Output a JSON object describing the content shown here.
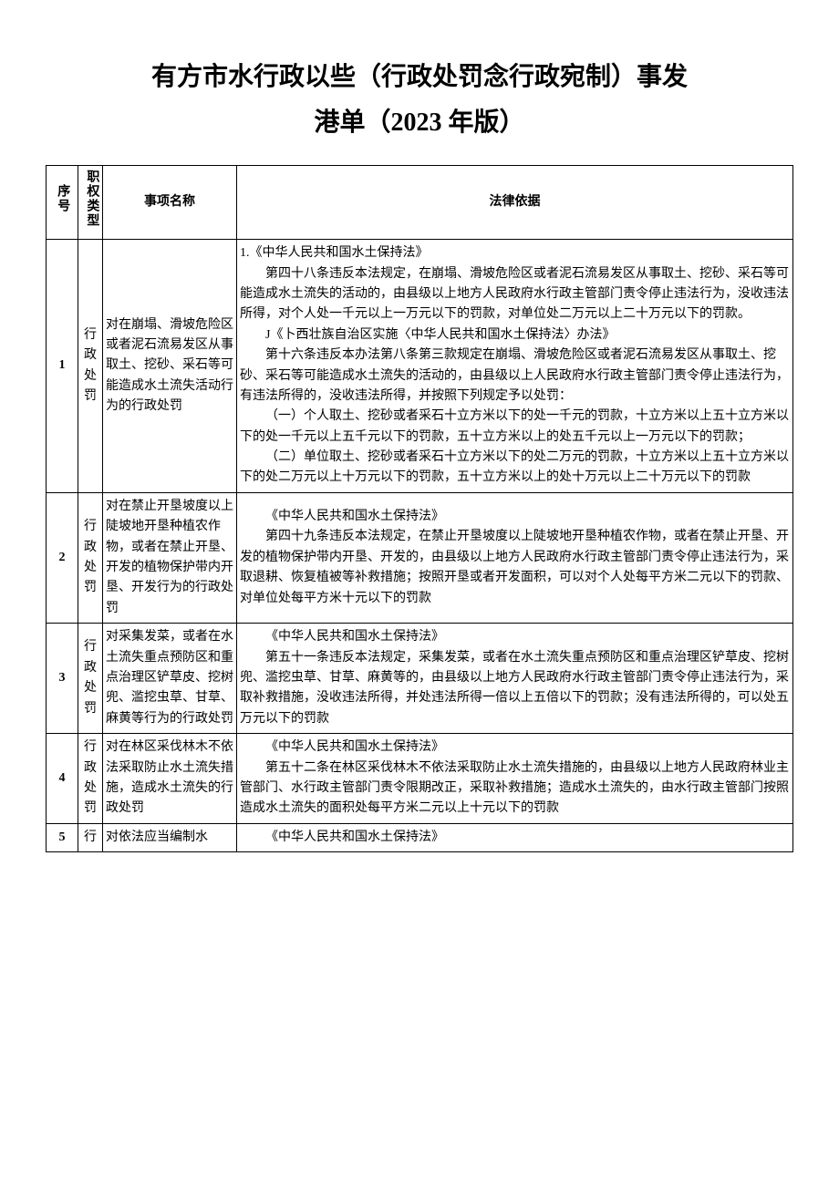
{
  "title_line1": "有方市水行政以些（行政处罚念行政宛制）事发",
  "title_line2": "港单（2023 年版）",
  "headers": {
    "num": "序号",
    "type": "职权类型",
    "name": "事项名称",
    "basis": "法律依据"
  },
  "rows": [
    {
      "num": "1",
      "type": "行政处罚",
      "name": "对在崩塌、滑坡危险区或者泥石流易发区从事取土、挖砂、采石等可能造成水土流失活动行为的行政处罚",
      "basis_lines": [
        {
          "cls": "first-line",
          "text": "1.《中华人民共和国水土保持法》"
        },
        {
          "cls": "indent",
          "text": "第四十八条违反本法规定，在崩塌、滑坡危险区或者泥石流易发区从事取土、挖砂、采石等可能造成水土流失的活动的，由县级以上地方人民政府水行政主管部门责令停止违法行为，没收违法所得，对个人处一千元以上一万元以下的罚款，对单位处二万元以上二十万元以下的罚款。"
        },
        {
          "cls": "indent",
          "text": "J《卜西壮族自治区实施〈中华人民共和国水土保持法〉办法》"
        },
        {
          "cls": "indent",
          "text": "第十六条违反本办法第八条第三款规定在崩塌、滑坡危险区或者泥石流易发区从事取土、挖砂、采石等可能造成水土流失的活动的，由县级以上人民政府水行政主管部门责令停止违法行为，有违法所得的，没收违法所得，并按照下列规定予以处罚："
        },
        {
          "cls": "indent",
          "text": "（一）个人取土、挖砂或者采石十立方米以下的处一千元的罚款，十立方米以上五十立方米以下的处一千元以上五千元以下的罚款，五十立方米以上的处五千元以上一万元以下的罚款；"
        },
        {
          "cls": "indent",
          "text": "（二）单位取土、挖砂或者采石十立方米以下的处二万元的罚款，十立方米以上五十立方米以下的处二万元以上十万元以下的罚款，五十立方米以上的处十万元以上二十万元以下的罚款"
        }
      ]
    },
    {
      "num": "2",
      "type": "行政处罚",
      "name": "对在禁止开垦坡度以上陡坡地开垦种植农作物，或者在禁止开垦、开发的植物保护带内开垦、开发行为的行政处罚",
      "basis_lines": [
        {
          "cls": "indent",
          "text": "《中华人民共和国水土保持法》"
        },
        {
          "cls": "indent",
          "text": "第四十九条违反本法规定，在禁止开垦坡度以上陡坡地开垦种植农作物，或者在禁止开垦、开发的植物保护带内开垦、开发的，由县级以上地方人民政府水行政主管部门责令停止违法行为，采取退耕、恢复植被等补救措施；按照开垦或者开发面积，可以对个人处每平方米二元以下的罚款、对单位处每平方米十元以下的罚款"
        }
      ]
    },
    {
      "num": "3",
      "type": "行政处罚",
      "name": "对采集发菜，或者在水土流失重点预防区和重点治理区铲草皮、挖树兜、滥挖虫草、甘草、麻黄等行为的行政处罚",
      "basis_lines": [
        {
          "cls": "indent",
          "text": "《中华人民共和国水土保持法》"
        },
        {
          "cls": "indent",
          "text": "第五十一条违反本法规定，采集发菜，或者在水土流失重点预防区和重点治理区铲草皮、挖树兜、滥挖虫草、甘草、麻黄等的，由县级以上地方人民政府水行政主管部门责令停止违法行为，采取补救措施，没收违法所得，并处违法所得一倍以上五倍以下的罚款；没有违法所得的，可以处五万元以下的罚款"
        }
      ]
    },
    {
      "num": "4",
      "type": "行政处罚",
      "name": "对在林区采伐林木不依法采取防止水土流失措施，造成水土流失的行政处罚",
      "basis_lines": [
        {
          "cls": "indent",
          "text": "《中华人民共和国水土保持法》"
        },
        {
          "cls": "indent",
          "text": "第五十二条在林区采伐林木不依法采取防止水土流失措施的，由县级以上地方人民政府林业主管部门、水行政主管部门责令限期改正，采取补救措施；造成水土流失的，由水行政主管部门按照造成水土流失的面积处每平方米二元以上十元以下的罚款"
        }
      ]
    },
    {
      "num": "5",
      "type": "行",
      "name": "对依法应当编制水",
      "basis_lines": [
        {
          "cls": "indent",
          "text": "《中华人民共和国水土保持法》"
        }
      ]
    }
  ]
}
